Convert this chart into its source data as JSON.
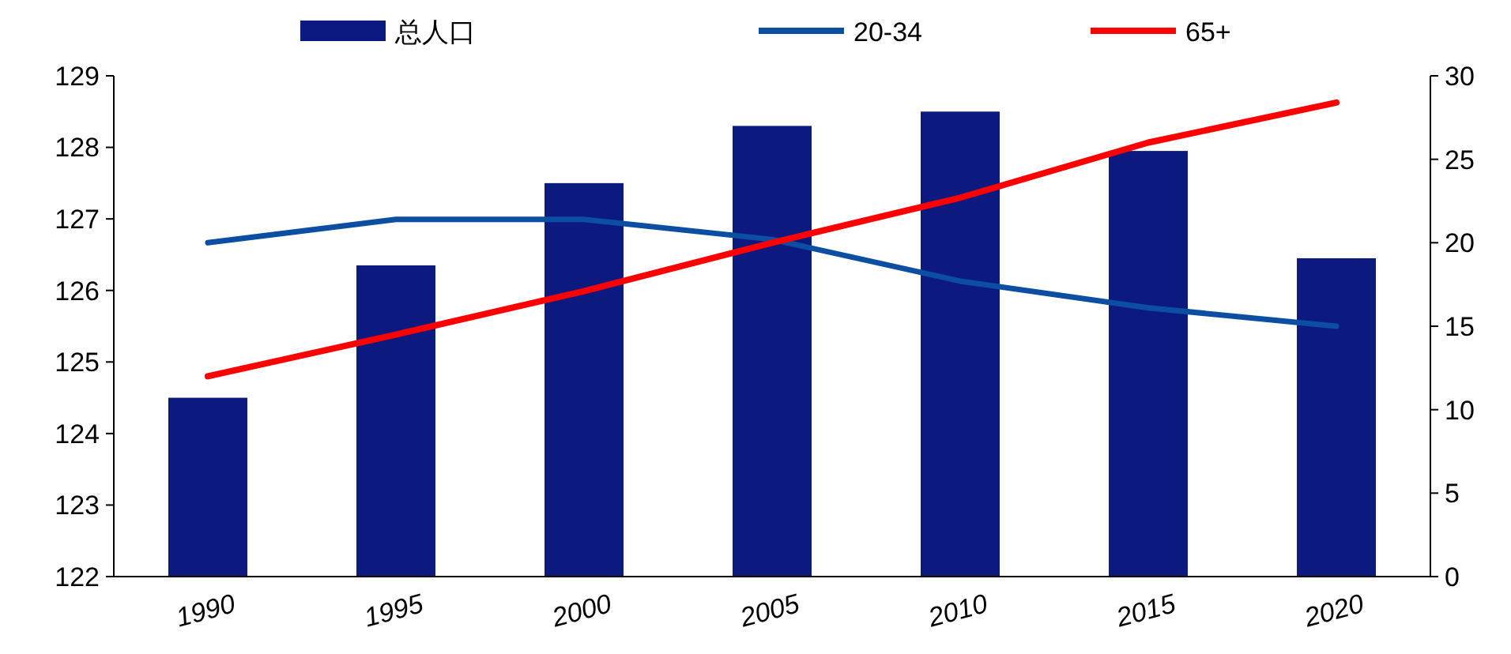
{
  "chart_data": {
    "type": "bar",
    "categories": [
      "1990",
      "1995",
      "2000",
      "2005",
      "2010",
      "2015",
      "2020"
    ],
    "series": [
      {
        "name": "总人口",
        "color": "#0c1a80",
        "values": [
          124.5,
          126.35,
          127.5,
          128.3,
          128.5,
          127.95,
          126.45
        ]
      },
      {
        "name": "20-34",
        "type": "line",
        "axis": "y2",
        "color": "#0b4ea2",
        "values": [
          20.0,
          21.4,
          21.4,
          20.2,
          17.7,
          16.1,
          15.0
        ]
      },
      {
        "name": "65+",
        "type": "line",
        "axis": "y2",
        "color": "#ff0000",
        "values": [
          12.0,
          14.5,
          17.1,
          20.0,
          22.7,
          26.0,
          28.4
        ]
      }
    ],
    "ylim": [
      122,
      129
    ],
    "yticks": [
      122,
      123,
      124,
      125,
      126,
      127,
      128,
      129
    ],
    "y2lim": [
      0,
      30
    ],
    "y2ticks": [
      0,
      5,
      10,
      15,
      20,
      25,
      30
    ],
    "legend": "top",
    "grid": false
  }
}
